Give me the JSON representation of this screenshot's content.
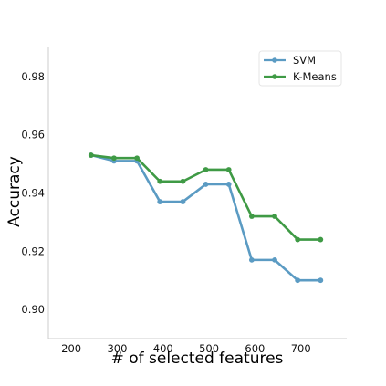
{
  "chart_data": {
    "type": "line",
    "title": "",
    "xlabel": "# of selected features",
    "ylabel": "Accuracy",
    "xlim": [
      150,
      800
    ],
    "ylim": [
      0.89,
      0.99
    ],
    "xticks": [
      200,
      300,
      400,
      500,
      600,
      700
    ],
    "yticks": [
      0.9,
      0.92,
      0.94,
      0.96,
      0.98
    ],
    "xtick_labels": [
      "200",
      "300",
      "400",
      "500",
      "600",
      "700"
    ],
    "ytick_labels": [
      "0.90",
      "0.92",
      "0.94",
      "0.96",
      "0.98"
    ],
    "grid": false,
    "legend_position": "top-right",
    "x": [
      243,
      293,
      343,
      393,
      443,
      493,
      543,
      593,
      643,
      693,
      743
    ],
    "series": [
      {
        "name": "SVM",
        "color": "#5b9bc3",
        "values": [
          0.953,
          0.951,
          0.951,
          0.937,
          0.937,
          0.943,
          0.943,
          0.917,
          0.917,
          0.91,
          0.91
        ]
      },
      {
        "name": "K-Means",
        "color": "#3f9a45",
        "values": [
          0.953,
          0.952,
          0.952,
          0.944,
          0.944,
          0.948,
          0.948,
          0.932,
          0.932,
          0.924,
          0.924
        ]
      }
    ]
  }
}
